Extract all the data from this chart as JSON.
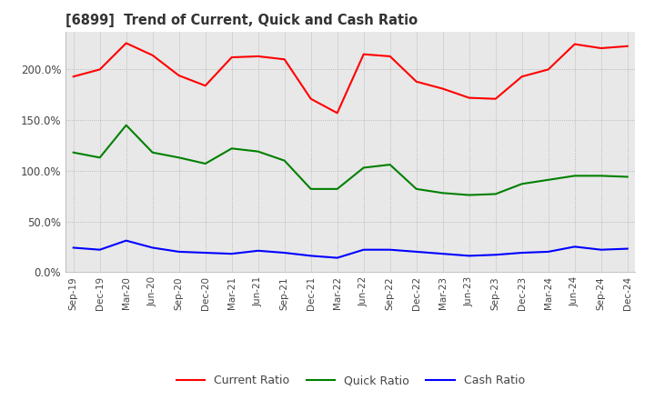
{
  "title": "[6899]  Trend of Current, Quick and Cash Ratio",
  "x_labels": [
    "Sep-19",
    "Dec-19",
    "Mar-20",
    "Jun-20",
    "Sep-20",
    "Dec-20",
    "Mar-21",
    "Jun-21",
    "Sep-21",
    "Dec-21",
    "Mar-22",
    "Jun-22",
    "Sep-22",
    "Dec-22",
    "Mar-23",
    "Jun-23",
    "Sep-23",
    "Dec-23",
    "Mar-24",
    "Jun-24",
    "Sep-24",
    "Dec-24"
  ],
  "current_ratio": [
    193,
    200,
    226,
    214,
    194,
    184,
    212,
    213,
    210,
    171,
    157,
    215,
    213,
    188,
    181,
    172,
    171,
    193,
    200,
    225,
    221,
    223
  ],
  "quick_ratio": [
    118,
    113,
    145,
    118,
    113,
    107,
    122,
    119,
    110,
    82,
    82,
    103,
    106,
    82,
    78,
    76,
    77,
    87,
    91,
    95,
    95,
    94
  ],
  "cash_ratio": [
    24,
    22,
    31,
    24,
    20,
    19,
    18,
    21,
    19,
    16,
    14,
    22,
    22,
    20,
    18,
    16,
    17,
    19,
    20,
    25,
    22,
    23
  ],
  "current_color": "#ff0000",
  "quick_color": "#008000",
  "cash_color": "#0000ff",
  "ylim": [
    0,
    237
  ],
  "yticks": [
    0,
    50,
    100,
    150,
    200
  ],
  "background_color": "#ffffff",
  "grid_color": "#aaaaaa",
  "plot_bg_color": "#e8e8e8"
}
